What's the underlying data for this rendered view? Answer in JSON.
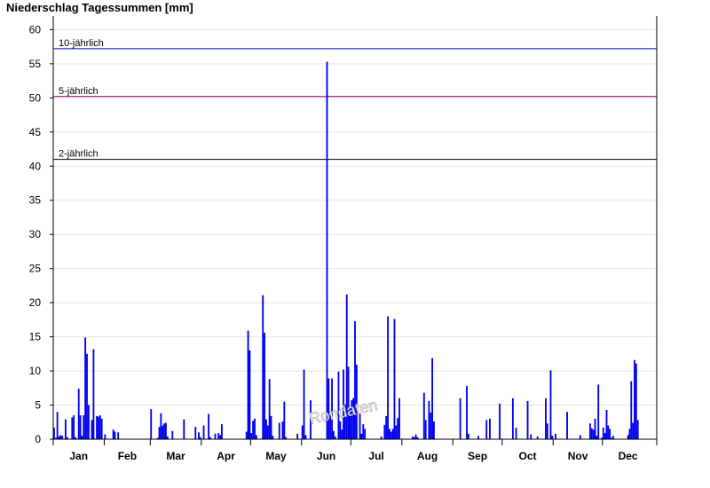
{
  "title": "Niederschlag Tagessummen [mm]",
  "watermark": "Rondaten",
  "colors": {
    "bars": "#0000ee",
    "grid": "#e6e6e6",
    "axis": "#000000"
  },
  "chart_data": {
    "type": "bar",
    "title": "Niederschlag Tagessummen [mm]",
    "xlabel": "",
    "ylabel": "",
    "ylim": [
      0,
      62
    ],
    "yticks": [
      0,
      5,
      10,
      15,
      20,
      25,
      30,
      35,
      40,
      45,
      50,
      55,
      60
    ],
    "grid": true,
    "months": [
      "Jan",
      "Feb",
      "Mar",
      "Apr",
      "May",
      "Jun",
      "Jul",
      "Aug",
      "Sep",
      "Oct",
      "Nov",
      "Dec"
    ],
    "month_days": [
      31,
      28,
      31,
      30,
      31,
      30,
      31,
      31,
      30,
      31,
      30,
      31
    ],
    "reference_lines": [
      {
        "label": "10-jährlich",
        "value": 57.2,
        "color": "#0000cc"
      },
      {
        "label": "5-jährlich",
        "value": 50.2,
        "color": "#800060"
      },
      {
        "label": "2-jährlich",
        "value": 41.0,
        "color": "#000000"
      }
    ],
    "series": [
      {
        "values": [
          1.7,
          0.2,
          4.0,
          0.4,
          0.6,
          0.5,
          0.0,
          2.9,
          0.3,
          0.0,
          0.0,
          3.2,
          3.5,
          0.3,
          0.0,
          7.4,
          3.5,
          0.5,
          3.5,
          14.9,
          12.5,
          5.0,
          0.0,
          2.8,
          13.2,
          0.1,
          3.4,
          3.3,
          3.5,
          3.0,
          0.0,
          0.7,
          0.0,
          0.0,
          0.0,
          0.0,
          1.4,
          1.1,
          0.0,
          1.0,
          0.0,
          0.0,
          0.0,
          0.0,
          0.0,
          0.0,
          0.0,
          0.0,
          0.0,
          0.0,
          0.0,
          0.0,
          0.0,
          0.0,
          0.0,
          0.0,
          0.0,
          0.0,
          0.0,
          4.4,
          0.0,
          0.0,
          0.0,
          0.2,
          1.8,
          3.8,
          2.0,
          2.3,
          2.4,
          0.4,
          0.0,
          0.0,
          1.2,
          0.0,
          0.0,
          0.0,
          0.0,
          0.0,
          0.0,
          2.9,
          0.0,
          0.0,
          0.0,
          0.0,
          0.0,
          0.0,
          1.8,
          0.0,
          1.0,
          0.3,
          0.0,
          2.0,
          0.0,
          0.0,
          3.7,
          0.3,
          0.0,
          0.0,
          0.8,
          0.0,
          0.9,
          0.6,
          2.2,
          0.0,
          0.0,
          0.0,
          0.0,
          0.0,
          0.0,
          0.0,
          0.0,
          0.0,
          0.0,
          0.0,
          0.0,
          0.0,
          0.0,
          1.1,
          15.9,
          13.0,
          0.9,
          2.7,
          3.0,
          0.6,
          0.0,
          0.0,
          0.0,
          21.1,
          15.6,
          2.9,
          2.0,
          8.8,
          3.4,
          0.5,
          0.0,
          0.0,
          0.0,
          2.4,
          0.0,
          2.6,
          5.5,
          0.3,
          0.0,
          0.0,
          0.0,
          0.0,
          0.0,
          0.0,
          0.8,
          0.0,
          0.0,
          2.0,
          10.2,
          0.6,
          0.0,
          0.0,
          5.7,
          0.0,
          0.0,
          0.0,
          0.0,
          0.0,
          0.0,
          0.0,
          0.0,
          0.0,
          55.3,
          8.9,
          3.5,
          8.9,
          1.2,
          0.4,
          0.0,
          9.9,
          2.6,
          1.4,
          10.2,
          5.1,
          21.2,
          10.6,
          4.6,
          5.7,
          6.0,
          17.3,
          10.9,
          0.0,
          3.7,
          0.8,
          2.2,
          1.5,
          0.0,
          0.0,
          0.0,
          0.0,
          0.0,
          0.0,
          0.0,
          0.0,
          0.0,
          0.4,
          0.0,
          2.1,
          3.4,
          18.0,
          1.5,
          1.1,
          1.5,
          17.6,
          2.0,
          3.1,
          6.0,
          0.0,
          0.0,
          0.0,
          0.0,
          0.0,
          0.0,
          0.0,
          0.4,
          0.3,
          0.7,
          0.3,
          0.0,
          0.0,
          0.0,
          6.8,
          2.8,
          0.0,
          5.6,
          3.9,
          11.9,
          2.6,
          0.0,
          0.0,
          0.0,
          0.0,
          0.0,
          0.0,
          0.0,
          0.0,
          0.0,
          0.0,
          0.0,
          0.0,
          0.0,
          0.0,
          0.0,
          6.0,
          0.0,
          0.0,
          0.0,
          7.8,
          0.8,
          0.0,
          0.0,
          0.0,
          0.0,
          0.0,
          0.5,
          0.0,
          0.0,
          0.0,
          0.0,
          2.8,
          0.0,
          3.0,
          0.0,
          0.0,
          0.0,
          0.0,
          0.0,
          5.2,
          0.0,
          0.0,
          0.0,
          0.0,
          0.0,
          0.0,
          0.0,
          6.0,
          0.0,
          1.7,
          0.0,
          0.0,
          0.0,
          0.0,
          0.0,
          0.0,
          5.6,
          0.0,
          0.7,
          0.0,
          0.0,
          0.0,
          0.4,
          0.0,
          0.0,
          0.0,
          0.0,
          6.0,
          2.3,
          0.0,
          10.1,
          0.5,
          0.0,
          0.8,
          0.0,
          0.0,
          0.0,
          0.0,
          0.0,
          0.0,
          4.0,
          0.0,
          0.0,
          0.0,
          0.0,
          0.0,
          0.0,
          0.0,
          0.6,
          0.0,
          0.0,
          0.0,
          0.0,
          0.0,
          2.3,
          1.6,
          1.4,
          3.0,
          0.5,
          8.0,
          0.0,
          0.2,
          1.7,
          0.9,
          4.3,
          2.0,
          1.5,
          0.2,
          0.5,
          0.0,
          0.0,
          0.0,
          0.0,
          0.0,
          0.0,
          0.0,
          0.0,
          0.6,
          1.5,
          8.5,
          2.4,
          11.6,
          11.1,
          2.8,
          0.0,
          0.0,
          0.0,
          0.0,
          0.0,
          0.0,
          0.0,
          0.0,
          0.0,
          0.0,
          0.0
        ]
      }
    ]
  }
}
